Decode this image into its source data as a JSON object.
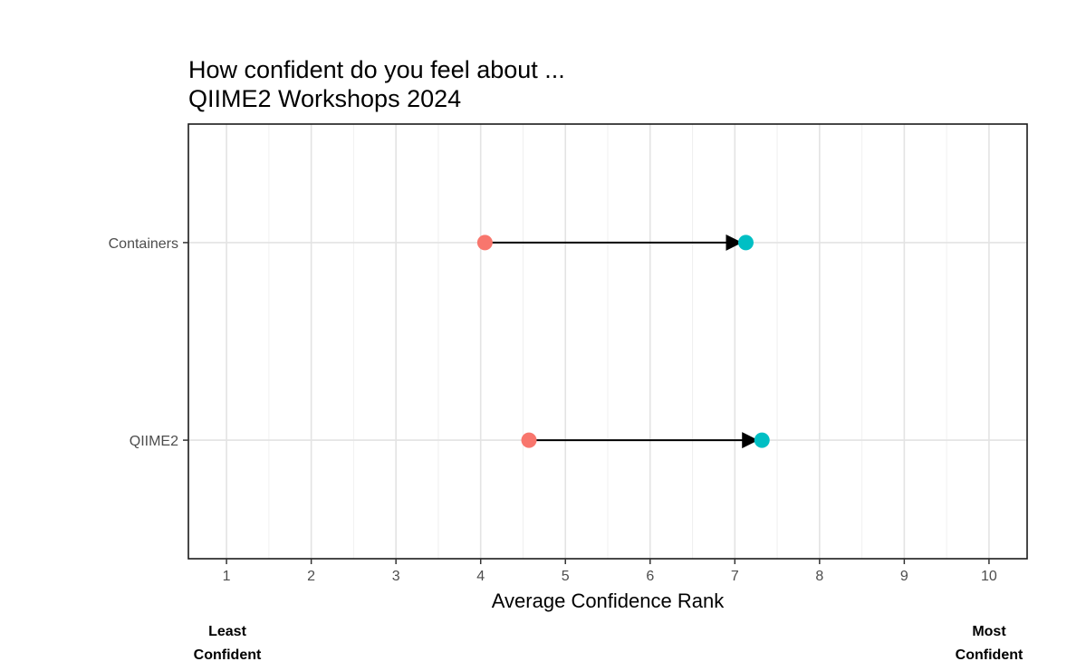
{
  "chart_data": {
    "type": "dumbbell",
    "title": [
      "How confident do you feel about ...",
      "QIIME2 Workshops 2024"
    ],
    "xlabel": "Average Confidence Rank",
    "xlim": [
      0.55,
      10.45
    ],
    "x_ticks": [
      1,
      2,
      3,
      4,
      5,
      6,
      7,
      8,
      9,
      10
    ],
    "categories": [
      "Containers",
      "QIIME2"
    ],
    "series": [
      {
        "values": [
          4.05,
          4.57
        ],
        "color": "#F8766D"
      },
      {
        "values": [
          7.13,
          7.32
        ],
        "color": "#00BFC4"
      }
    ],
    "arrow_color": "#000000",
    "grid": true,
    "caption_left": [
      "Least",
      "Confident"
    ],
    "caption_right": [
      "Most",
      "Confident"
    ]
  }
}
